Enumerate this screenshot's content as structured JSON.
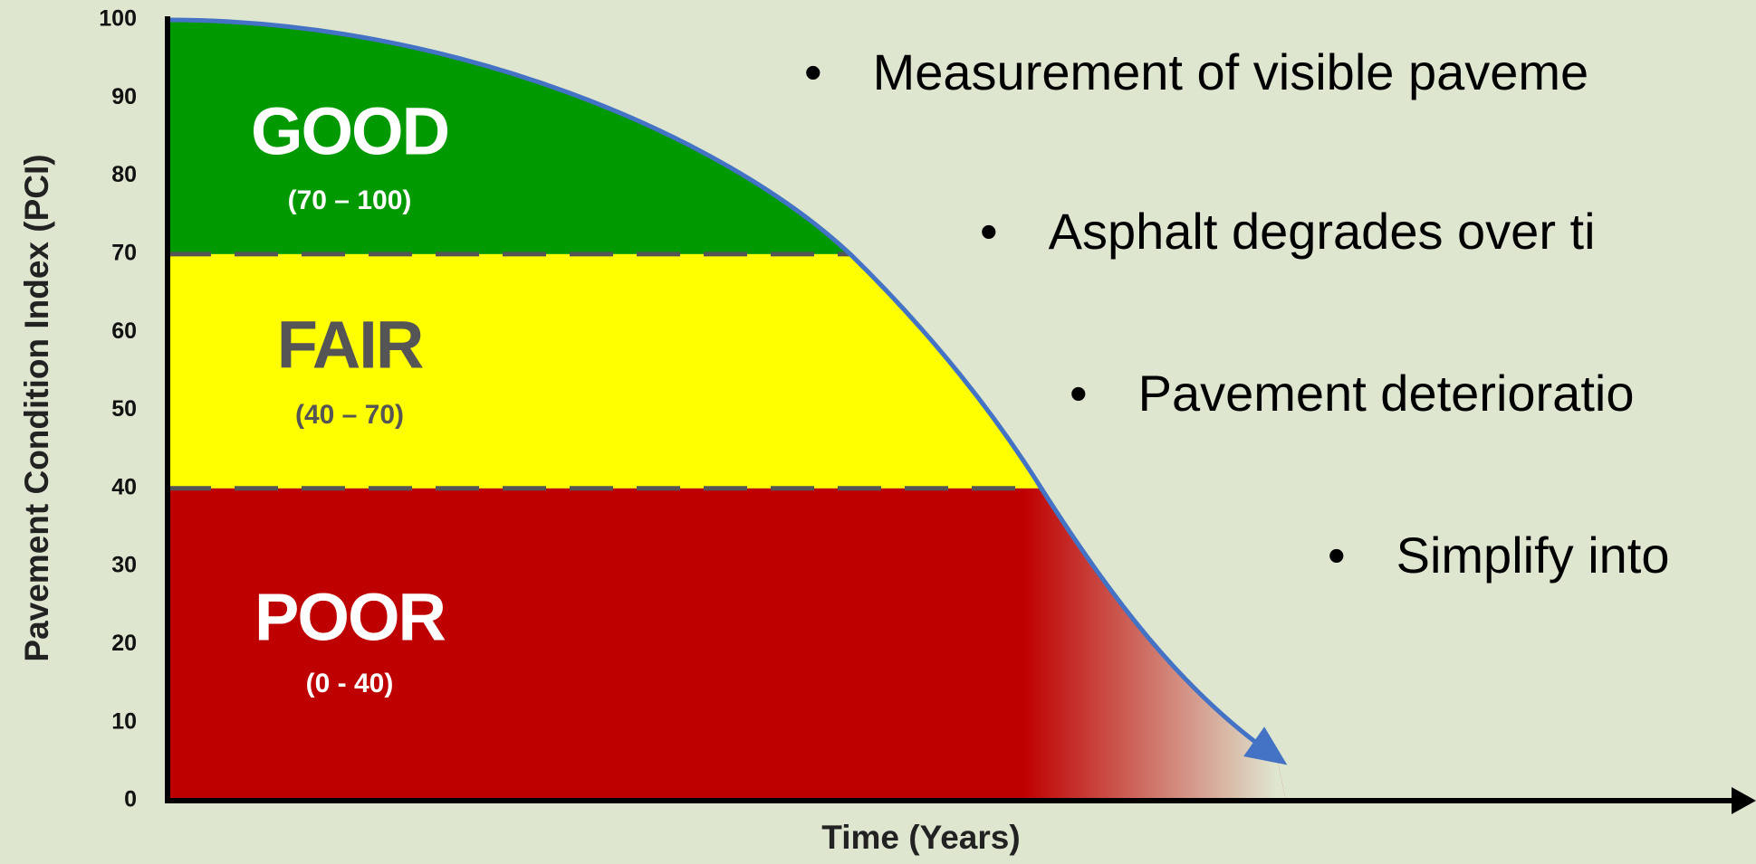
{
  "chart_data": {
    "type": "zones",
    "ylabel": "Pavement Condition Index (PCI)",
    "xlabel": "Time (Years)",
    "ylim": [
      0,
      100
    ],
    "yticks": [
      0,
      10,
      20,
      30,
      40,
      50,
      60,
      70,
      80,
      90,
      100
    ],
    "zones": [
      {
        "name": "GOOD",
        "range": "(70 – 100)",
        "from": 70,
        "to": 100,
        "color": "#009900",
        "text_color": "#ffffff"
      },
      {
        "name": "FAIR",
        "range": "(40 – 70)",
        "from": 40,
        "to": 70,
        "color": "#ffff00",
        "text_color": "#555555"
      },
      {
        "name": "POOR",
        "range": "(0 - 40)",
        "from": 0,
        "to": 40,
        "color": "#bf0000",
        "text_color": "#ffffff"
      }
    ],
    "bullets": [
      "Measurement of visible paveme",
      "Asphalt degrades over ti",
      "Pavement deterioratio",
      "Simplify into"
    ]
  }
}
